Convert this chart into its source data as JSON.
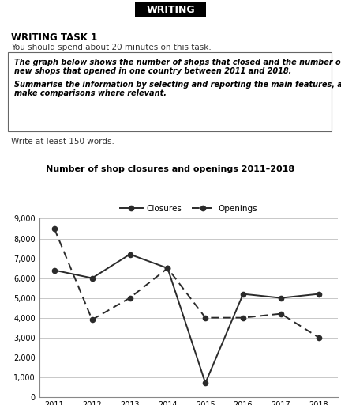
{
  "years": [
    2011,
    2012,
    2013,
    2014,
    2015,
    2016,
    2017,
    2018
  ],
  "closures": [
    6400,
    6000,
    7200,
    6500,
    700,
    5200,
    5000,
    5200
  ],
  "openings": [
    8500,
    3900,
    5000,
    6500,
    4000,
    4000,
    4200,
    3000
  ],
  "chart_title": "Number of shop closures and openings 2011–2018",
  "header": "WRITING",
  "task_title": "WRITING TASK 1",
  "task_subtitle": "You should spend about 20 minutes on this task.",
  "box_line1": "The graph below shows the number of shops that closed and the number of",
  "box_line2": "new shops that opened in one country between 2011 and 2018.",
  "box_line3": "Summarise the information by selecting and reporting the main features, and",
  "box_line4": "make comparisons where relevant.",
  "footer_text": "Write at least 150 words.",
  "ylim": [
    0,
    9000
  ],
  "yticks": [
    0,
    1000,
    2000,
    3000,
    4000,
    5000,
    6000,
    7000,
    8000,
    9000
  ],
  "ytick_labels": [
    "0",
    "1,000",
    "2,000",
    "3,000",
    "4,000",
    "5,000",
    "6,000",
    "7,000",
    "8,000",
    "9,000"
  ],
  "line_color": "#2b2b2b",
  "bg_color": "#ffffff",
  "grid_color": "#c8c8c8"
}
